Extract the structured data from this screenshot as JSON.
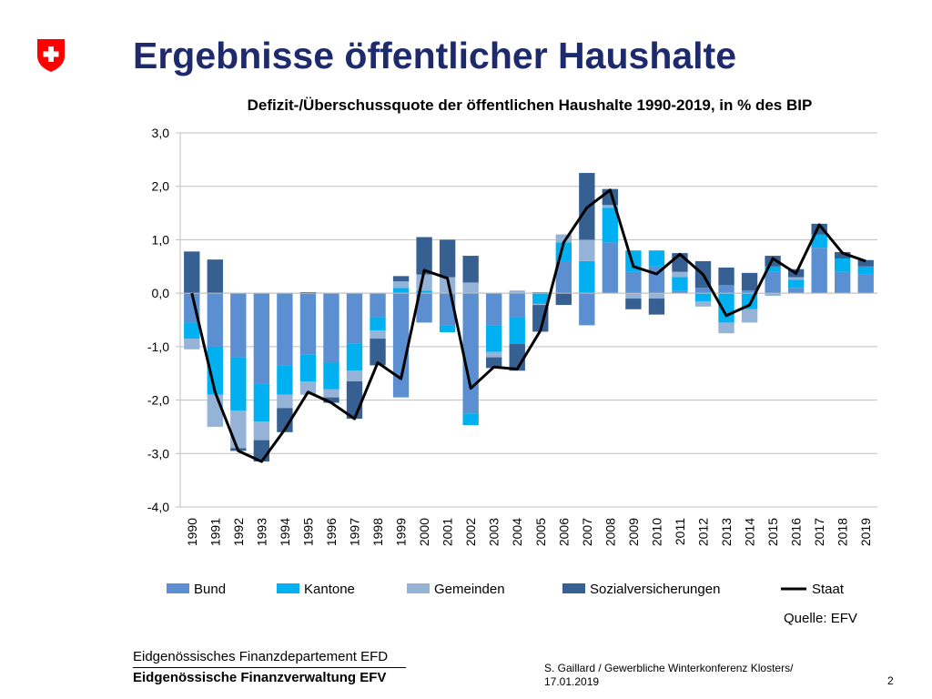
{
  "header": {
    "title": "Ergebnisse öffentlicher Haushalte"
  },
  "chart_data": {
    "type": "bar",
    "title": "Defizit-/Überschussquote der öffentlichen Haushalte 1990-2019, in % des BIP",
    "xlabel": "",
    "ylabel": "",
    "ylim": [
      -4.0,
      3.0
    ],
    "yticks": [
      "3,0",
      "2,0",
      "1,0",
      "0,0",
      "-1,0",
      "-2,0",
      "-3,0",
      "-4,0"
    ],
    "ytick_values": [
      3,
      2,
      1,
      0,
      -1,
      -2,
      -3,
      -4
    ],
    "grid": true,
    "legend_position": "bottom",
    "stacked": true,
    "categories": [
      "1990",
      "1991",
      "1992",
      "1993",
      "1994",
      "1995",
      "1996",
      "1997",
      "1998",
      "1999",
      "2000",
      "2001",
      "2002",
      "2003",
      "2004",
      "2005",
      "2006",
      "2007",
      "2008",
      "2009",
      "2010",
      "2011",
      "2012",
      "2013",
      "2014",
      "2015",
      "2016",
      "2017",
      "2018",
      "2019"
    ],
    "series": [
      {
        "name": "Bund",
        "kind": "bar",
        "color": "#5b8fd2",
        "values": [
          -0.55,
          -1.0,
          -1.2,
          -1.7,
          -1.35,
          -1.15,
          -1.3,
          -0.95,
          -0.45,
          -1.95,
          -0.55,
          -0.6,
          -2.25,
          -0.6,
          -0.45,
          0.02,
          0.6,
          -0.6,
          0.95,
          0.4,
          0.5,
          0.05,
          0.1,
          0.15,
          0.05,
          0.4,
          0.1,
          0.85,
          0.4,
          0.35
        ]
      },
      {
        "name": "Kantone",
        "kind": "bar",
        "color": "#00b0f0",
        "values": [
          -0.3,
          -0.9,
          -1.0,
          -0.7,
          -0.55,
          -0.5,
          -0.5,
          -0.5,
          -0.25,
          0.1,
          0.05,
          -0.13,
          -0.22,
          -0.5,
          -0.5,
          -0.2,
          0.35,
          0.6,
          0.65,
          0.4,
          0.3,
          0.25,
          -0.15,
          -0.55,
          -0.3,
          0.1,
          0.15,
          0.25,
          0.25,
          0.15
        ]
      },
      {
        "name": "Gemeinden",
        "kind": "bar",
        "color": "#95b3d7",
        "values": [
          -0.2,
          -0.6,
          -0.7,
          -0.35,
          -0.25,
          -0.25,
          -0.15,
          -0.2,
          -0.15,
          0.12,
          0.3,
          0.3,
          0.2,
          -0.1,
          0.05,
          -0.02,
          0.15,
          0.4,
          0.05,
          -0.1,
          -0.1,
          0.1,
          -0.1,
          -0.2,
          -0.25,
          -0.05,
          0.05,
          0.0,
          0.0,
          0.0
        ]
      },
      {
        "name": "Sozialversicherungen",
        "kind": "bar",
        "color": "#366092",
        "values": [
          0.78,
          0.63,
          -0.05,
          -0.4,
          -0.45,
          0.02,
          -0.1,
          -0.7,
          -0.5,
          0.1,
          0.7,
          0.7,
          0.5,
          -0.2,
          -0.5,
          -0.5,
          -0.22,
          1.25,
          0.3,
          -0.2,
          -0.3,
          0.35,
          0.5,
          0.33,
          0.33,
          0.2,
          0.15,
          0.2,
          0.12,
          0.12
        ]
      },
      {
        "name": "Staat",
        "kind": "line",
        "color": "#000000",
        "values": [
          0.0,
          -1.85,
          -2.95,
          -3.15,
          -2.55,
          -1.85,
          -2.05,
          -2.35,
          -1.3,
          -1.6,
          0.43,
          0.28,
          -1.78,
          -1.38,
          -1.42,
          -0.7,
          0.95,
          1.6,
          1.93,
          0.5,
          0.36,
          0.73,
          0.35,
          -0.42,
          -0.22,
          0.65,
          0.37,
          1.28,
          0.75,
          0.6
        ]
      }
    ]
  },
  "source": "Quelle: EFV",
  "footer": {
    "dept": "Eidgenössisches Finanzdepartement EFD",
    "office": "Eidgenössische Finanzverwaltung EFV",
    "author": "S. Gaillard / Gewerbliche Winterkonferenz Klosters/",
    "date": "17.01.2019",
    "page": "2"
  },
  "colors": {
    "title": "#1d2a6b",
    "logo_red": "#ff0000"
  },
  "icons": {
    "logo": "swiss-coat-of-arms-icon"
  }
}
